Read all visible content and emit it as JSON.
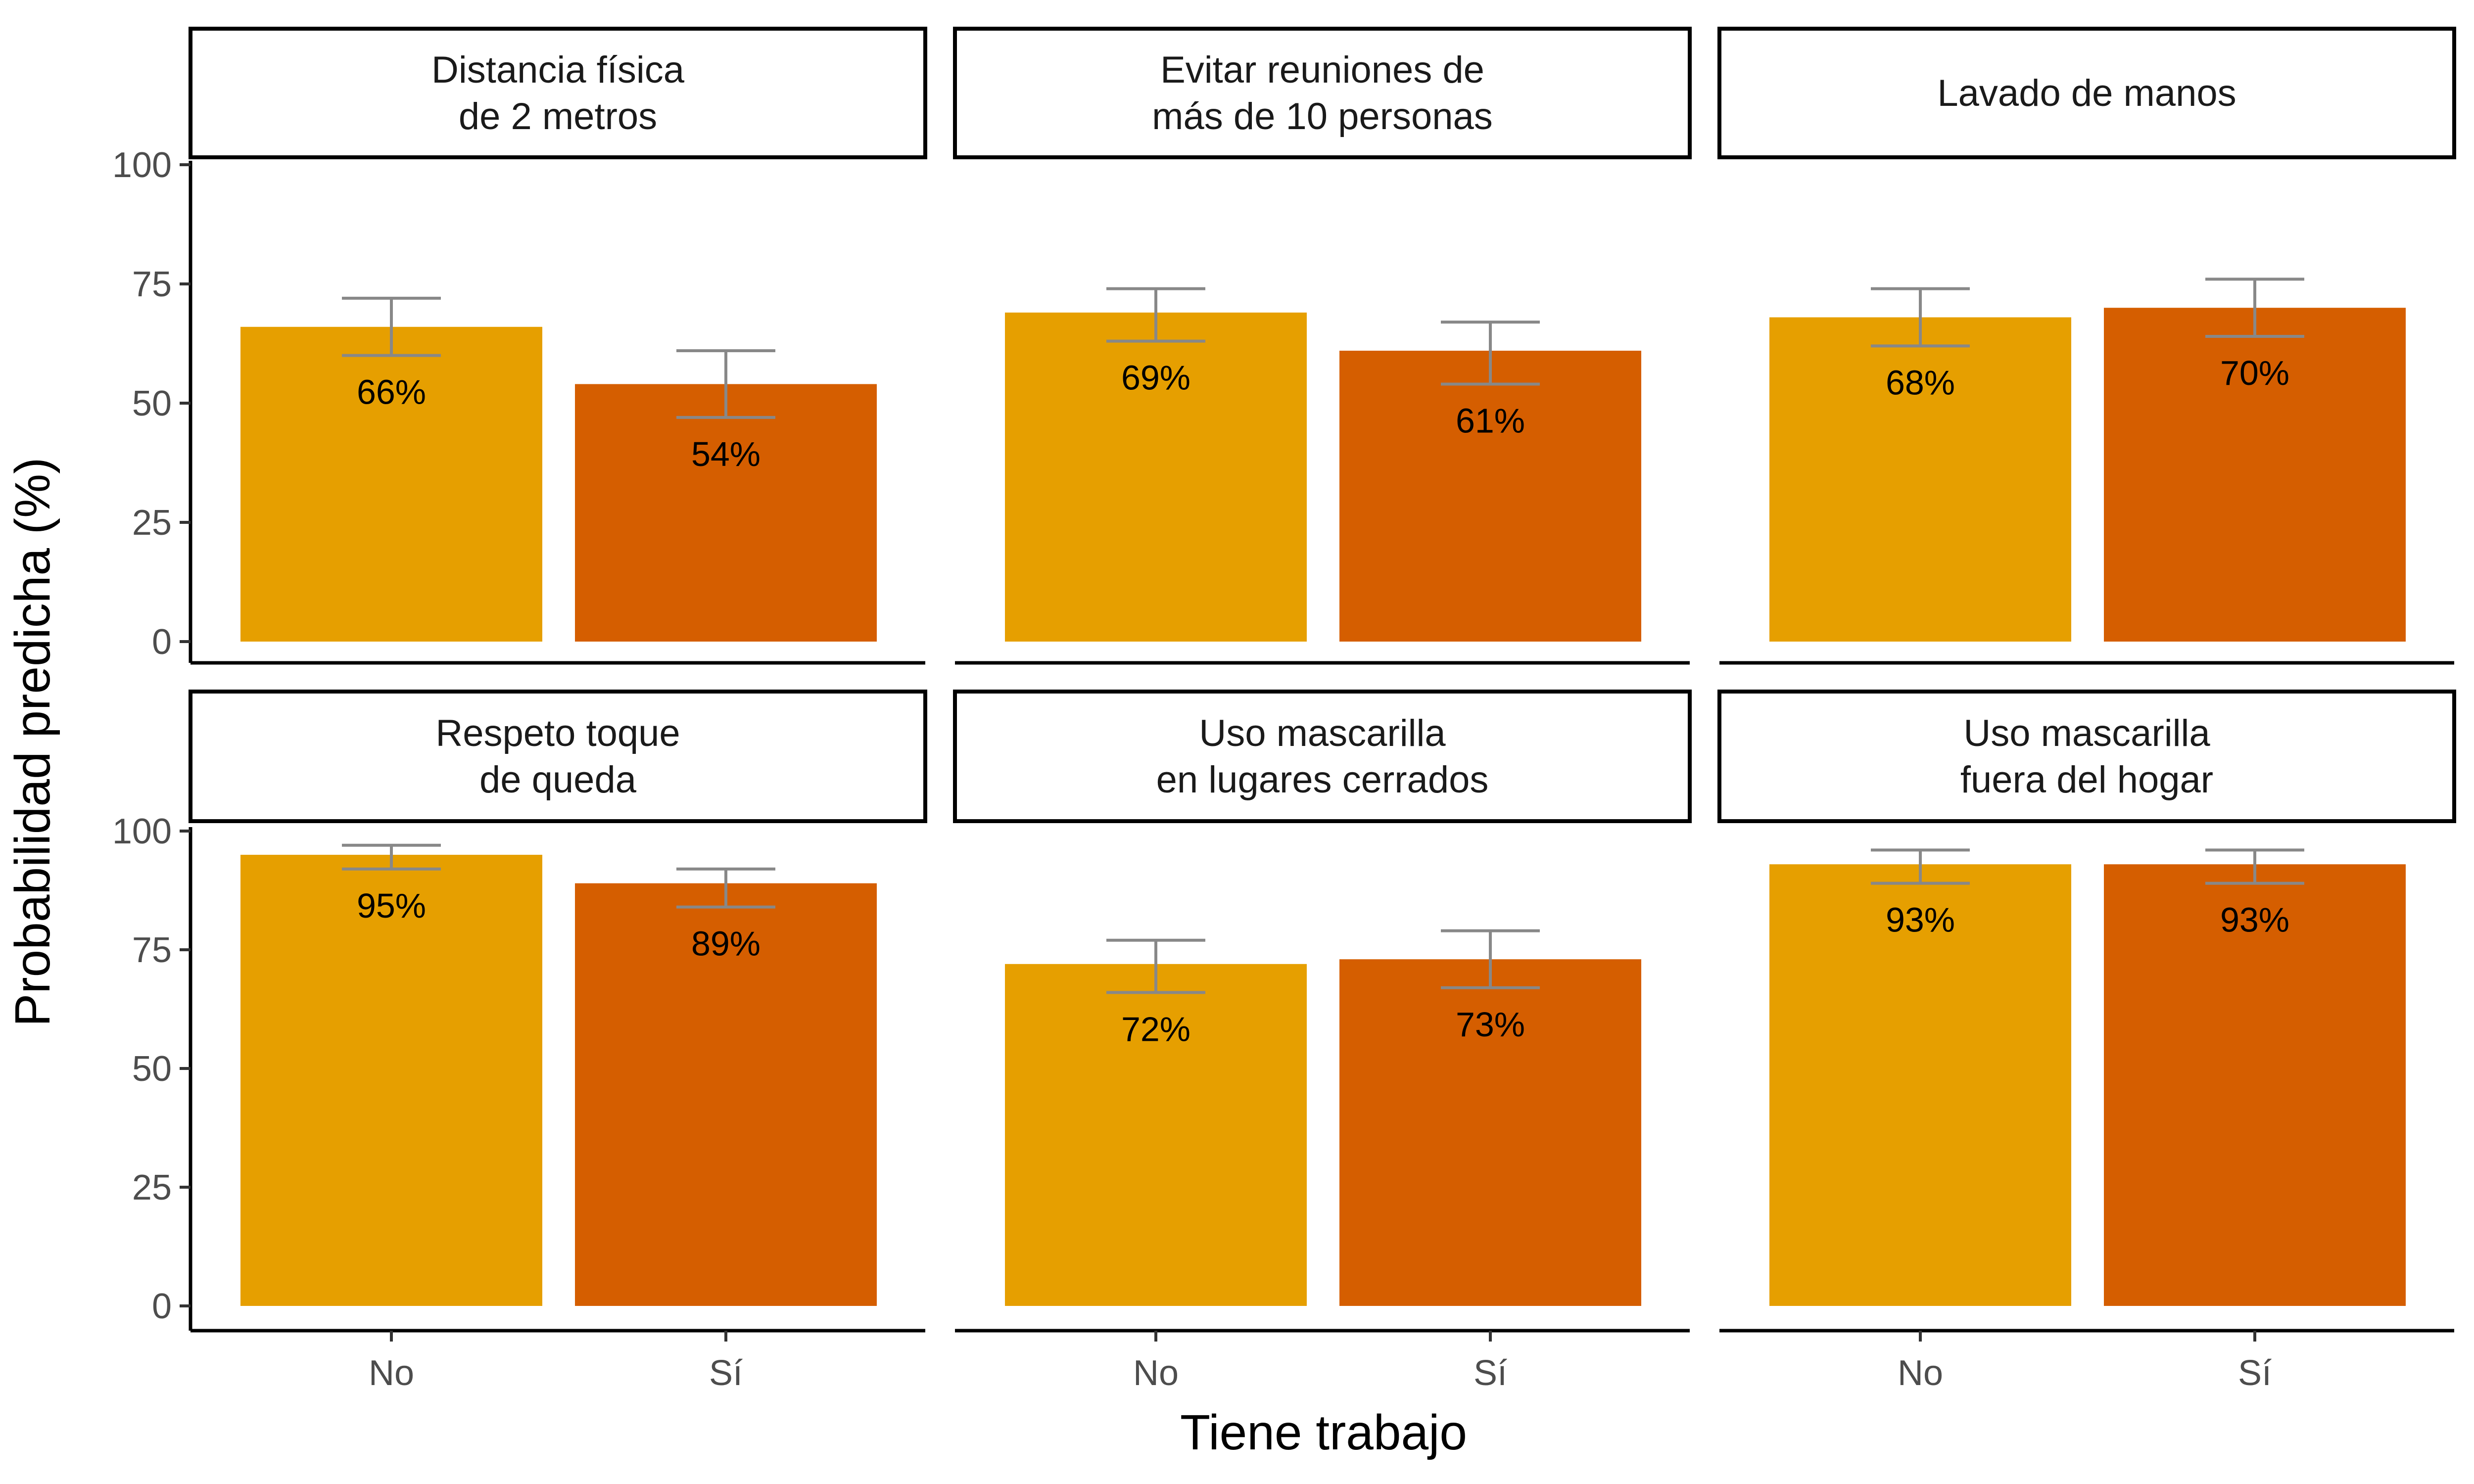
{
  "chart_data": {
    "type": "bar",
    "layout": "facet-grid",
    "xlabel": "Tiene trabajo",
    "ylabel": "Probabilidad predicha (%)",
    "ylim": [
      0,
      100
    ],
    "yticks": [
      0,
      25,
      50,
      75,
      100
    ],
    "categories": [
      "No",
      "Sí"
    ],
    "colors": {
      "No": "#E69F00",
      "Sí": "#D55E00",
      "errorbar": "#888888"
    },
    "grid": false,
    "legend": "none",
    "facets": [
      {
        "title": [
          "Distancia física",
          "de 2 metros"
        ],
        "values": [
          66,
          54
        ],
        "labels": [
          "66%",
          "54%"
        ],
        "ci": [
          [
            60,
            72
          ],
          [
            47,
            61
          ]
        ]
      },
      {
        "title": [
          "Evitar reuniones de",
          "más de 10 personas"
        ],
        "values": [
          69,
          61
        ],
        "labels": [
          "69%",
          "61%"
        ],
        "ci": [
          [
            63,
            74
          ],
          [
            54,
            67
          ]
        ]
      },
      {
        "title": [
          "Lavado de manos"
        ],
        "values": [
          68,
          70
        ],
        "labels": [
          "68%",
          "70%"
        ],
        "ci": [
          [
            62,
            74
          ],
          [
            64,
            76
          ]
        ]
      },
      {
        "title": [
          "Respeto toque",
          "de queda"
        ],
        "values": [
          95,
          89
        ],
        "labels": [
          "95%",
          "89%"
        ],
        "ci": [
          [
            92,
            97
          ],
          [
            84,
            92
          ]
        ]
      },
      {
        "title": [
          "Uso mascarilla",
          "en lugares cerrados"
        ],
        "values": [
          72,
          73
        ],
        "labels": [
          "72%",
          "73%"
        ],
        "ci": [
          [
            66,
            77
          ],
          [
            67,
            79
          ]
        ]
      },
      {
        "title": [
          "Uso mascarilla",
          "fuera del hogar"
        ],
        "values": [
          93,
          93
        ],
        "labels": [
          "93%",
          "93%"
        ],
        "ci": [
          [
            89,
            96
          ],
          [
            89,
            96
          ]
        ]
      }
    ]
  }
}
